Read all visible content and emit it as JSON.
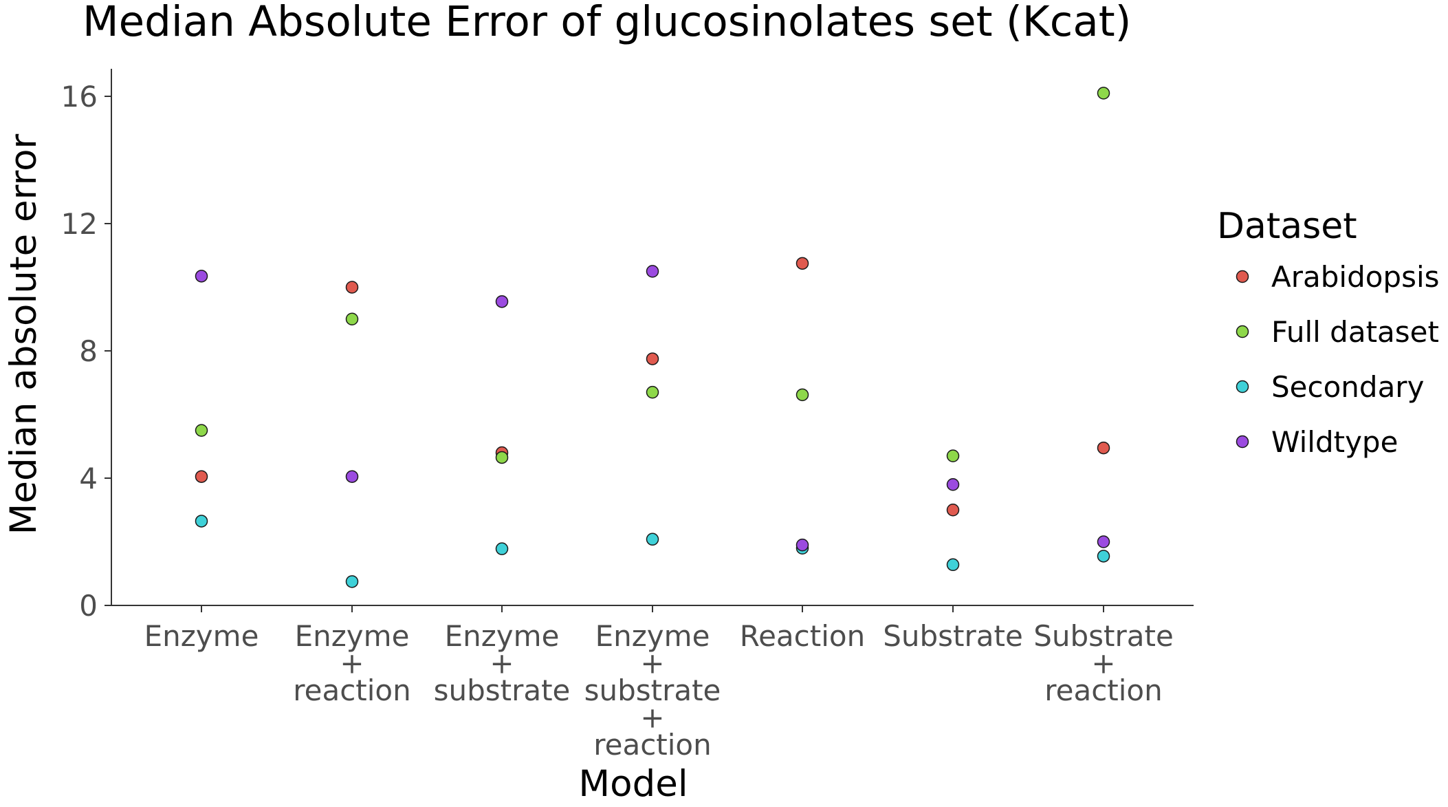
{
  "chart_data": {
    "type": "scatter",
    "title": "Median Absolute Error of glucosinolates set (Kcat)",
    "xlabel": "Model",
    "ylabel": "Median absolute error",
    "ylim": [
      0,
      16.8
    ],
    "yticks": [
      0,
      4,
      8,
      12,
      16
    ],
    "categories": [
      [
        "Enzyme"
      ],
      [
        "Enzyme",
        "+",
        "reaction"
      ],
      [
        "Enzyme",
        "+",
        "substrate"
      ],
      [
        "Enzyme",
        "+",
        "substrate",
        "+",
        "reaction"
      ],
      [
        "Reaction"
      ],
      [
        "Substrate"
      ],
      [
        "Substrate",
        "+",
        "reaction"
      ]
    ],
    "grid": false,
    "legend": {
      "title": "Dataset",
      "placement": "right"
    },
    "series": [
      {
        "name": "Arabidopsis",
        "color": "#e05a4f",
        "values": [
          4.05,
          10.0,
          4.8,
          7.75,
          10.75,
          3.0,
          4.95
        ]
      },
      {
        "name": "Full dataset",
        "color": "#8ed84a",
        "values": [
          5.5,
          9.0,
          4.65,
          6.7,
          6.62,
          4.7,
          16.1
        ]
      },
      {
        "name": "Secondary",
        "color": "#3fd1d8",
        "values": [
          2.65,
          0.75,
          1.78,
          2.08,
          1.8,
          1.28,
          1.55
        ]
      },
      {
        "name": "Wildtype",
        "color": "#9b4be0",
        "values": [
          10.35,
          4.05,
          9.55,
          10.5,
          1.9,
          3.8,
          2.0
        ]
      }
    ]
  }
}
